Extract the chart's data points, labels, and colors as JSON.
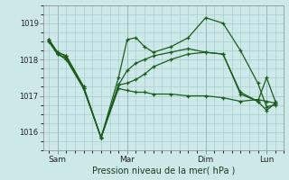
{
  "background_color": "#cce8e8",
  "grid_color": "#aacece",
  "line_color": "#1a5c1a",
  "title": "Pression niveau de la mer( hPa )",
  "ylim": [
    1015.5,
    1019.5
  ],
  "yticks": [
    1016,
    1017,
    1018,
    1019
  ],
  "x_labels": [
    "Sam",
    "Mar",
    "Dim",
    "Lun"
  ],
  "x_tick_pos": [
    0.5,
    4.5,
    9.0,
    12.5
  ],
  "series1_x": [
    0,
    0.5,
    1,
    2,
    3,
    4,
    4.5,
    5,
    5.5,
    6,
    7,
    8,
    9,
    10,
    11,
    12,
    12.5,
    13
  ],
  "series1_y": [
    1018.5,
    1018.15,
    1018.0,
    1017.2,
    1015.85,
    1017.2,
    1017.15,
    1017.1,
    1017.1,
    1017.05,
    1017.05,
    1017.0,
    1017.0,
    1016.95,
    1016.85,
    1016.9,
    1016.85,
    1016.8
  ],
  "series2_x": [
    0,
    0.5,
    1,
    2,
    3,
    4,
    4.5,
    5,
    5.5,
    6,
    7,
    8,
    9,
    10,
    11,
    12,
    12.5,
    13
  ],
  "series2_y": [
    1018.5,
    1018.15,
    1018.05,
    1017.2,
    1015.85,
    1017.3,
    1017.35,
    1017.45,
    1017.6,
    1017.8,
    1018.0,
    1018.15,
    1018.2,
    1018.15,
    1017.1,
    1016.85,
    1017.5,
    1016.85
  ],
  "series3_x": [
    0,
    0.5,
    1,
    2,
    3,
    4,
    4.5,
    5,
    5.5,
    6,
    7,
    8,
    9,
    10,
    11,
    12,
    12.5,
    13
  ],
  "series3_y": [
    1018.55,
    1018.2,
    1018.1,
    1017.25,
    1015.85,
    1017.5,
    1018.55,
    1018.6,
    1018.35,
    1018.2,
    1018.35,
    1018.6,
    1019.15,
    1019.0,
    1018.25,
    1017.35,
    1016.7,
    1016.75
  ],
  "series4_x": [
    0,
    0.5,
    1,
    2,
    3,
    4,
    4.5,
    5,
    5.5,
    6,
    7,
    8,
    9,
    10,
    11,
    12,
    12.5,
    13
  ],
  "series4_y": [
    1018.55,
    1018.2,
    1018.1,
    1017.25,
    1015.85,
    1017.3,
    1017.7,
    1017.9,
    1018.0,
    1018.1,
    1018.2,
    1018.3,
    1018.2,
    1018.15,
    1017.05,
    1016.85,
    1016.6,
    1016.8
  ]
}
